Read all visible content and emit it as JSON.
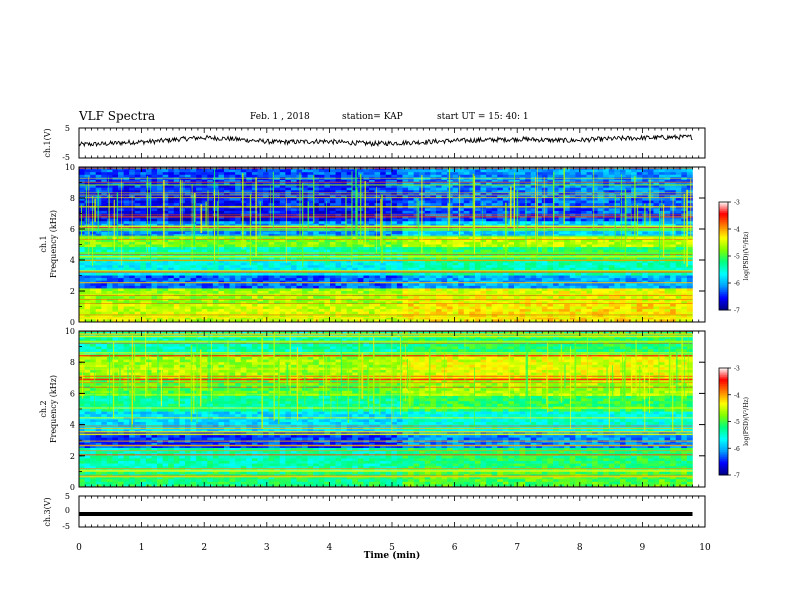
{
  "header": {
    "title": "VLF Spectra",
    "date": "Feb. 1 , 2018",
    "station": "station= KAP",
    "start": "start UT = 15: 40: 1"
  },
  "chart_data": [
    {
      "type": "line",
      "panel": "ch1-waveform",
      "ylabel": "ch.1(V)",
      "ylim": [
        -5,
        5
      ],
      "yticks": [
        "5",
        "-5"
      ],
      "xlim": [
        0,
        10
      ],
      "x_end": 9.8,
      "approx_values": [
        -0.5,
        -0.3,
        0.2,
        0.5,
        1.2,
        1.8,
        1.5,
        0.9,
        0.3,
        0.4,
        0.6,
        0.1,
        -0.2,
        0.0,
        0.3,
        0.7,
        0.9,
        1.1,
        1.3,
        1.0,
        0.8,
        1.2,
        1.5,
        1.7,
        1.9,
        2.0
      ]
    },
    {
      "type": "heatmap",
      "panel": "ch1-spectrogram",
      "ylabel": "ch.1",
      "ylabel2": "Frequency (kHz)",
      "ylim": [
        0,
        10
      ],
      "yticks": [
        "0",
        "2",
        "4",
        "6",
        "8",
        "10"
      ],
      "xlim": [
        0,
        10
      ],
      "x_end": 9.8
    },
    {
      "type": "heatmap",
      "panel": "ch2-spectrogram",
      "ylabel": "ch.2",
      "ylabel2": "Frequency (kHz)",
      "ylim": [
        0,
        10
      ],
      "yticks": [
        "0",
        "2",
        "4",
        "6",
        "8",
        "10"
      ],
      "xlim": [
        0,
        10
      ],
      "x_end": 9.8
    },
    {
      "type": "line",
      "panel": "ch3-waveform",
      "ylabel": "ch.3(V)",
      "ylim": [
        -5,
        5
      ],
      "yticks": [
        "5",
        "0",
        "-5"
      ],
      "xlim": [
        0,
        10
      ],
      "x_end": 9.8,
      "constant_value": -0.8
    }
  ],
  "xaxis": {
    "label": "Time (min)",
    "ticks": [
      "0",
      "1",
      "2",
      "3",
      "4",
      "5",
      "6",
      "7",
      "8",
      "9",
      "10"
    ]
  },
  "colorbar": {
    "label": "log(PSD)(V²/Hz)",
    "ticks": [
      "-3",
      "-4",
      "-5",
      "-6",
      "-7"
    ],
    "range": [
      -7,
      -3
    ],
    "colormap": [
      "#000080",
      "#0000ff",
      "#00a0ff",
      "#00ffff",
      "#00ff80",
      "#80ff00",
      "#ffff00",
      "#ff8000",
      "#ff0000",
      "#ffffff"
    ]
  },
  "colors": {
    "waveform": "#000000",
    "axis": "#000000",
    "background": "#ffffff"
  }
}
